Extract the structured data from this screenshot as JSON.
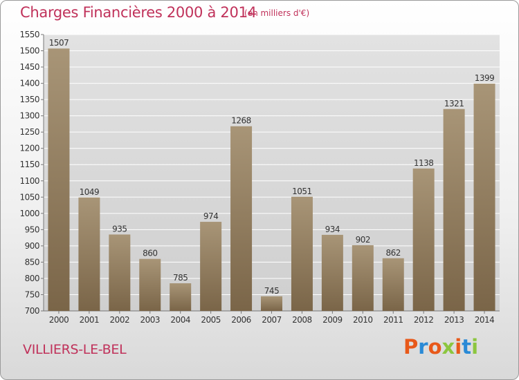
{
  "header": {
    "title": "Charges Financières 2000 à 2014",
    "subtitle": "(en milliers d'€)"
  },
  "footer": {
    "town": "VILLIERS-LE-BEL",
    "logo_text": "Proxiti",
    "logo_colors": [
      "#e8591a",
      "#2a8ad6",
      "#e8591a",
      "#8cc63f",
      "#e8591a",
      "#2a8ad6",
      "#8cc63f"
    ]
  },
  "colors": {
    "bar_light": "#a89577",
    "bar_dark": "#7a6548",
    "grid": "#ffffff",
    "title": "#c0315a"
  },
  "chart_data": {
    "type": "bar",
    "title": "Charges Financières 2000 à 2014",
    "subtitle": "(en milliers d'€)",
    "categories": [
      "2000",
      "2001",
      "2002",
      "2003",
      "2004",
      "2005",
      "2006",
      "2007",
      "2008",
      "2009",
      "2010",
      "2011",
      "2012",
      "2013",
      "2014"
    ],
    "values": [
      1507,
      1049,
      935,
      860,
      785,
      974,
      1268,
      745,
      1051,
      934,
      902,
      862,
      1138,
      1321,
      1399
    ],
    "ylim": [
      700,
      1550
    ],
    "yticks": [
      700,
      750,
      800,
      850,
      900,
      950,
      1000,
      1050,
      1100,
      1150,
      1200,
      1250,
      1300,
      1350,
      1400,
      1450,
      1500,
      1550
    ],
    "grid": true,
    "xlabel": "",
    "ylabel": ""
  }
}
